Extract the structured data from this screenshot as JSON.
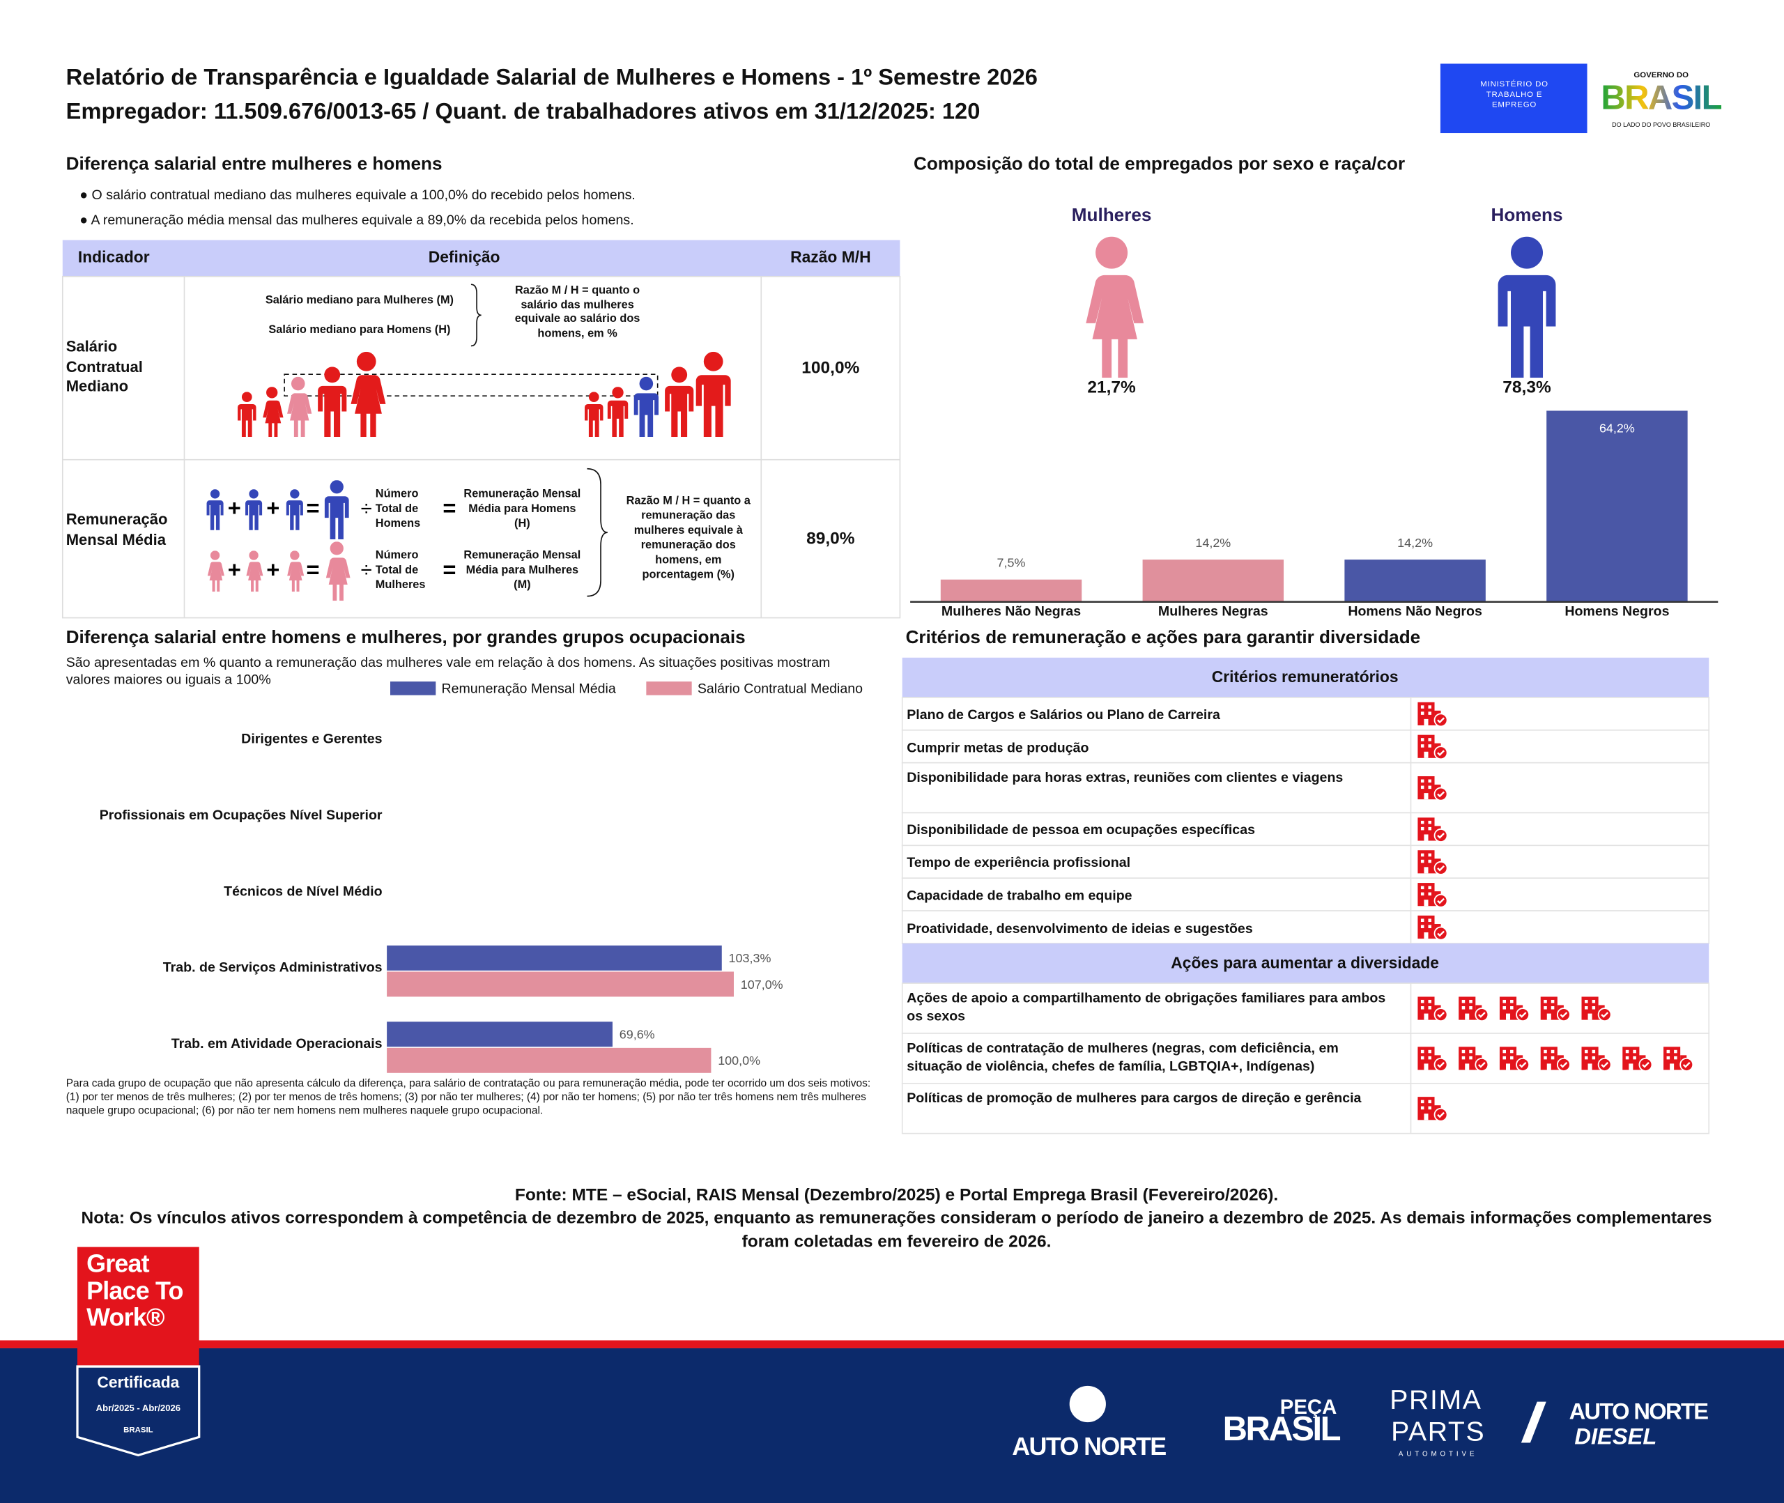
{
  "header": {
    "title": "Relatório de Transparência e Igualdade Salarial de Mulheres e Homens - 1º Semestre 2026",
    "subtitle": "Empregador: 11.509.676/0013-65 / Quant. de trabalhadores ativos em 31/12/2025: 120",
    "ministry": "MINISTÉRIO DO TRABALHO E EMPREGO",
    "gov_top": "GOVERNO DO",
    "gov_name": "BRASIL",
    "gov_slogan": "DO LADO DO POVO BRASILEIRO"
  },
  "salary": {
    "title": "Diferença salarial entre mulheres e homens",
    "bullets": [
      "● O salário contratual mediano das mulheres equivale a 100,0% do recebido pelos homens.",
      "● A remuneração média mensal das mulheres equivale a 89,0% da recebida pelos homens."
    ],
    "table": {
      "headers": [
        "Indicador",
        "Definição",
        "Razão M/H"
      ],
      "rows": [
        {
          "indicator": "Salário Contratual Mediano",
          "labels": [
            "Salário mediano para Mulheres (M)",
            "Salário mediano para Homens (H)"
          ],
          "note": "Razão M / H = quanto o salário das mulheres equivale ao salário dos homens, em %",
          "ratio": "100,0%"
        },
        {
          "indicator": "Remuneração Mensal Média",
          "labels": [
            "Número Total de Homens",
            "Remuneração Mensal Média para Homens (H)",
            "Número Total de Mulheres",
            "Remuneração Mensal Média para Mulheres (M)"
          ],
          "note": "Razão M / H = quanto a remuneração das mulheres equivale à remuneração dos homens, em porcentagem (%)",
          "ratio": "89,0%"
        }
      ]
    }
  },
  "chart_data": [
    {
      "type": "bar",
      "title": "Composição do total de empregados por sexo e raça/cor",
      "sex": {
        "categories": [
          "Mulheres",
          "Homens"
        ],
        "values": [
          21.7,
          78.3
        ],
        "value_labels": [
          "21,7%",
          "78,3%"
        ],
        "colors": [
          "#e8899b",
          "#3446b8"
        ]
      },
      "categories": [
        "Mulheres Não Negras",
        "Mulheres Negras",
        "Homens Não Negros",
        "Homens Negros"
      ],
      "values": [
        7.5,
        14.2,
        14.2,
        64.2
      ],
      "value_labels": [
        "7,5%",
        "14,2%",
        "14,2%",
        "64,2%"
      ],
      "colors": [
        "#e0909c",
        "#e0909c",
        "#4a57a6",
        "#4a57a6"
      ]
    },
    {
      "type": "barh",
      "title": "Diferença salarial entre homens e mulheres, por grandes grupos ocupacionais",
      "subtitle": "São apresentadas em % quanto a remuneração das mulheres vale em relação à dos homens. As situações positivas mostram valores maiores ou iguais a 100%",
      "categories": [
        "Dirigentes e Gerentes",
        "Profissionais em Ocupações Nível Superior",
        "Técnicos de Nível Médio",
        "Trab. de Serviços Administrativos",
        "Trab. em Atividade Operacionais"
      ],
      "series": [
        {
          "name": "Remuneração Mensal Média",
          "color": "#4a57a8",
          "values": [
            null,
            null,
            null,
            103.3,
            69.6
          ],
          "value_labels": [
            null,
            null,
            null,
            "103,3%",
            "69,6%"
          ]
        },
        {
          "name": "Salário Contratual Mediano",
          "color": "#e2909d",
          "values": [
            null,
            null,
            null,
            107.0,
            100.0
          ],
          "value_labels": [
            null,
            null,
            null,
            "107,0%",
            "100,0%"
          ]
        }
      ],
      "footnote": "Para cada grupo de ocupação que não apresenta cálculo da diferença, para salário de contratação ou para remuneração média, pode ter ocorrido um dos seis motivos:(1) por ter menos de três mulheres; (2) por ter menos de três homens; (3) por não ter mulheres; (4) por não ter homens; (5) por não ter três homens nem três mulheres naquele grupo ocupacional; (6) por não ter nem homens nem mulheres naquele grupo ocupacional."
    }
  ],
  "criteria": {
    "title": "Critérios de remuneração e ações para garantir diversidade",
    "sections": [
      {
        "header": "Critérios remuneratórios",
        "items": [
          {
            "label": "Plano de Cargos e Salários ou Plano de Carreira",
            "icons": 1
          },
          {
            "label": "Cumprir metas de produção",
            "icons": 1
          },
          {
            "label": "Disponibilidade para horas extras, reuniões com clientes e viagens",
            "icons": 1
          },
          {
            "label": "Disponibilidade de pessoa em ocupações específicas",
            "icons": 1
          },
          {
            "label": "Tempo de experiência profissional",
            "icons": 1
          },
          {
            "label": "Capacidade de trabalho em equipe",
            "icons": 1
          },
          {
            "label": "Proatividade, desenvolvimento de ideias e sugestões",
            "icons": 1
          }
        ]
      },
      {
        "header": "Ações para aumentar a diversidade",
        "items": [
          {
            "label": "Ações de apoio a compartilhamento de obrigações familiares para ambos os sexos",
            "icons": 5
          },
          {
            "label": "Políticas de contratação de mulheres (negras, com deficiência, em situação de violência, chefes de família, LGBTQIA+, Indígenas)",
            "icons": 7
          },
          {
            "label": "Políticas de promoção de mulheres para cargos de direção e gerência",
            "icons": 1
          }
        ]
      }
    ]
  },
  "footer": {
    "source": "Fonte: MTE – eSocial, RAIS Mensal (Dezembro/2025) e Portal Emprega Brasil (Fevereiro/2026).",
    "note": "Nota: Os vínculos ativos correspondem à competência de dezembro de 2025, enquanto as remunerações consideram o período de janeiro a dezembro de 2025. As demais informações complementares foram coletadas em fevereiro de 2026.",
    "badge": {
      "name": "Great Place To Work®",
      "status": "Certificada",
      "period": "Abr/2025 - Abr/2026",
      "country": "BRASIL"
    },
    "brands": [
      "AUTO NORTE",
      "PEÇA",
      "BRASIL",
      "PRIMA",
      "PARTS",
      "AUTOMOTIVE",
      "AUTO NORTE",
      "DIESEL"
    ]
  }
}
